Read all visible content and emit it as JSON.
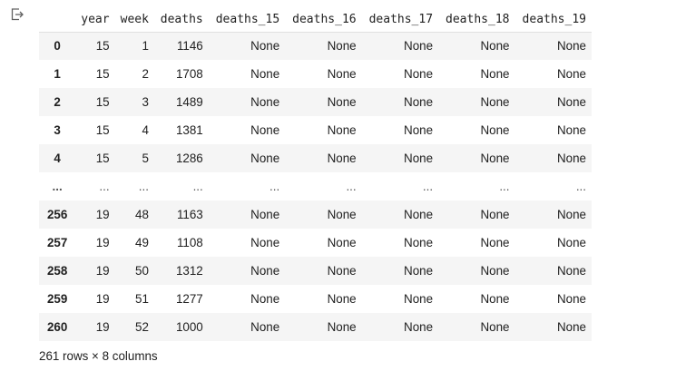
{
  "output_icon": "output-redirect-icon",
  "table": {
    "index_header": "",
    "columns": [
      "year",
      "week",
      "deaths",
      "deaths_15",
      "deaths_16",
      "deaths_17",
      "deaths_18",
      "deaths_19"
    ],
    "rows": [
      {
        "index": "0",
        "cells": [
          "15",
          "1",
          "1146",
          "None",
          "None",
          "None",
          "None",
          "None"
        ]
      },
      {
        "index": "1",
        "cells": [
          "15",
          "2",
          "1708",
          "None",
          "None",
          "None",
          "None",
          "None"
        ]
      },
      {
        "index": "2",
        "cells": [
          "15",
          "3",
          "1489",
          "None",
          "None",
          "None",
          "None",
          "None"
        ]
      },
      {
        "index": "3",
        "cells": [
          "15",
          "4",
          "1381",
          "None",
          "None",
          "None",
          "None",
          "None"
        ]
      },
      {
        "index": "4",
        "cells": [
          "15",
          "5",
          "1286",
          "None",
          "None",
          "None",
          "None",
          "None"
        ]
      },
      {
        "index": "...",
        "cells": [
          "...",
          "...",
          "...",
          "...",
          "...",
          "...",
          "...",
          "..."
        ],
        "ellipsis": true
      },
      {
        "index": "256",
        "cells": [
          "19",
          "48",
          "1163",
          "None",
          "None",
          "None",
          "None",
          "None"
        ]
      },
      {
        "index": "257",
        "cells": [
          "19",
          "49",
          "1108",
          "None",
          "None",
          "None",
          "None",
          "None"
        ]
      },
      {
        "index": "258",
        "cells": [
          "19",
          "50",
          "1312",
          "None",
          "None",
          "None",
          "None",
          "None"
        ]
      },
      {
        "index": "259",
        "cells": [
          "19",
          "51",
          "1277",
          "None",
          "None",
          "None",
          "None",
          "None"
        ]
      },
      {
        "index": "260",
        "cells": [
          "19",
          "52",
          "1000",
          "None",
          "None",
          "None",
          "None",
          "None"
        ]
      }
    ]
  },
  "summary": "261 rows × 8 columns",
  "colors": {
    "stripe": "#f5f5f5",
    "text": "#212121",
    "icon": "#616161"
  }
}
